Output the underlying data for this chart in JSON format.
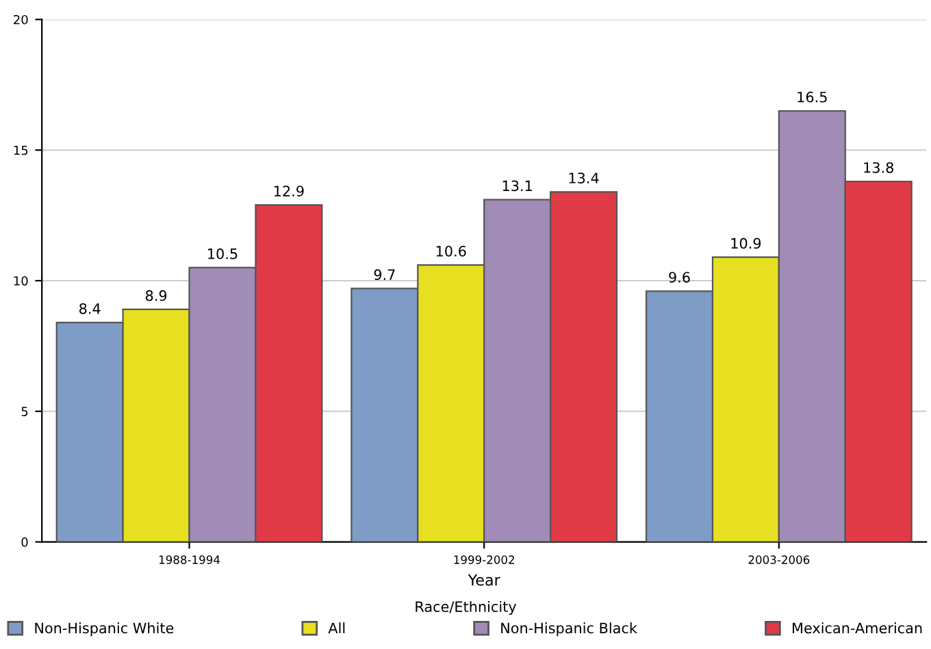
{
  "chart_data": {
    "type": "bar",
    "xlabel": "Year",
    "legend_title": "Race/Ethnicity",
    "categories": [
      "1988-1994",
      "1999-2002",
      "2003-2006"
    ],
    "series": [
      {
        "name": "Non-Hispanic White",
        "color": "#7f9cc6",
        "values": [
          8.4,
          9.7,
          9.6
        ]
      },
      {
        "name": "All",
        "color": "#e6e020",
        "values": [
          8.9,
          10.6,
          10.9
        ]
      },
      {
        "name": "Non-Hispanic Black",
        "color": "#a08cb6",
        "values": [
          10.5,
          13.1,
          16.5
        ]
      },
      {
        "name": "Mexican-American",
        "color": "#e03a46",
        "values": [
          12.9,
          13.4,
          13.8
        ]
      }
    ],
    "ylim": [
      0,
      20
    ],
    "yticks": [
      0,
      5,
      10,
      15,
      20
    ],
    "grid": "y",
    "legend": "bottom",
    "data_labels": true
  }
}
